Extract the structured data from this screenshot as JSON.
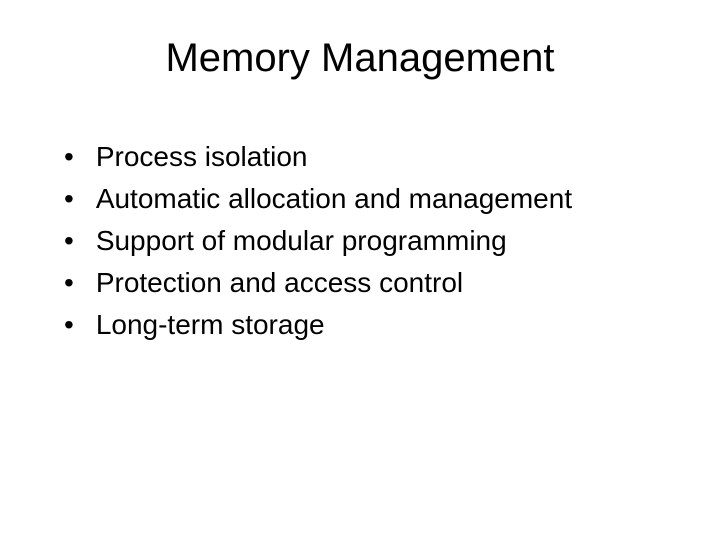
{
  "slide": {
    "title": "Memory Management",
    "bullets": [
      "Process isolation",
      "Automatic allocation and management",
      "Support of modular programming",
      "Protection and access control",
      "Long-term storage"
    ]
  },
  "style": {
    "background_color": "#ffffff",
    "text_color": "#000000",
    "title_fontsize": 40,
    "bullet_fontsize": 28,
    "font_family": "Arial"
  }
}
